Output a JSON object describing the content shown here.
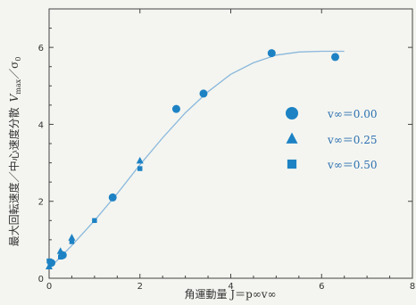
{
  "chart_data": {
    "type": "scatter",
    "xlabel": "角運動量 J＝p∞v∞",
    "ylabel": "最大回転速度／中心速度分散 Vmax／σ0",
    "ylabel_parts": [
      "最大回転速度／中心速度分散",
      "V",
      "max",
      "／σ",
      "0"
    ],
    "xlim": [
      0,
      8
    ],
    "ylim": [
      0,
      7
    ],
    "x_ticks": [
      0,
      2,
      4,
      6,
      8
    ],
    "y_ticks": [
      0,
      2,
      4,
      6
    ],
    "legend_position": "right",
    "colors": {
      "marker": "#1d82c4",
      "curve": "#8ab8dc",
      "axis": "#444444"
    },
    "series": [
      {
        "name": "v∞＝0.00",
        "marker": "circle",
        "points": [
          [
            0.05,
            0.4
          ],
          [
            0.3,
            0.6
          ],
          [
            1.4,
            2.1
          ],
          [
            2.8,
            4.4
          ],
          [
            3.4,
            4.8
          ],
          [
            4.9,
            5.85
          ],
          [
            6.3,
            5.75
          ]
        ]
      },
      {
        "name": "v∞＝0.25",
        "marker": "triangle",
        "points": [
          [
            0.0,
            0.3
          ],
          [
            0.25,
            0.7
          ],
          [
            0.5,
            1.05
          ],
          [
            2.0,
            3.05
          ]
        ]
      },
      {
        "name": "v∞＝0.50",
        "marker": "square",
        "points": [
          [
            0.0,
            0.45
          ],
          [
            0.25,
            0.55
          ],
          [
            0.5,
            0.95
          ],
          [
            1.0,
            1.5
          ],
          [
            2.0,
            2.85
          ]
        ]
      }
    ],
    "fit_curve": {
      "x": [
        0,
        0.5,
        1,
        1.5,
        2,
        2.5,
        3,
        3.5,
        4,
        4.5,
        5,
        5.5,
        6,
        6.5
      ],
      "y": [
        0.25,
        0.85,
        1.5,
        2.2,
        2.95,
        3.65,
        4.3,
        4.85,
        5.3,
        5.6,
        5.8,
        5.88,
        5.9,
        5.9
      ]
    }
  }
}
